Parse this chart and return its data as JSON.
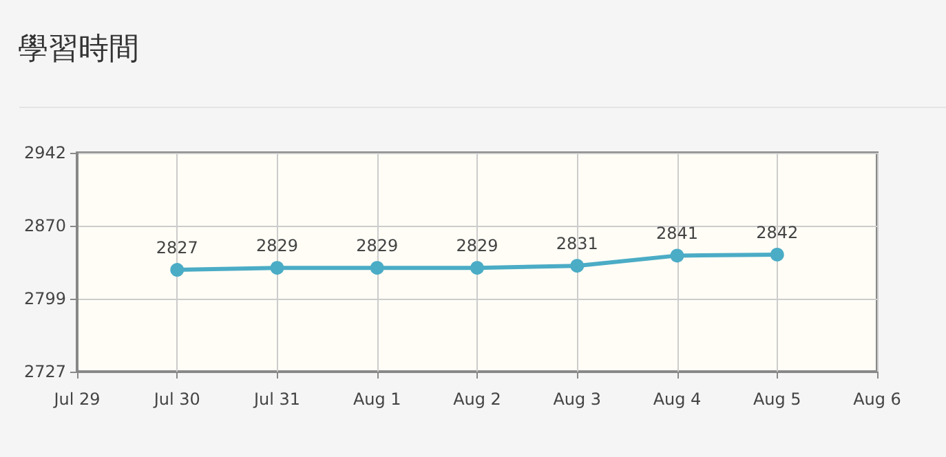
{
  "chart_data": {
    "type": "line",
    "title": "學習時間",
    "x": [
      "--07-30",
      "--07-31",
      "--08-01",
      "--08-02",
      "--08-03",
      "--08-04",
      "--08-05"
    ],
    "series": [
      {
        "color": "#4bacc6",
        "values": [
          2827,
          2829,
          2829,
          2829,
          2831,
          2841,
          2842
        ]
      }
    ],
    "xlim": [
      "--07-29",
      "--08-06"
    ],
    "xticks": [
      {
        "value": "--07-29",
        "label": "Jul 29"
      },
      {
        "value": "--07-30",
        "label": "Jul 30"
      },
      {
        "value": "--07-31",
        "label": "Jul 31"
      },
      {
        "value": "--08-01",
        "label": "Aug 1"
      },
      {
        "value": "--08-02",
        "label": "Aug 2"
      },
      {
        "value": "--08-03",
        "label": "Aug 3"
      },
      {
        "value": "--08-04",
        "label": "Aug 4"
      },
      {
        "value": "--08-05",
        "label": "Aug 5"
      },
      {
        "value": "--08-06",
        "label": "Aug 6"
      }
    ],
    "ylim": [
      2727,
      2942
    ],
    "yticks": [
      2727,
      2799,
      2870,
      2942
    ],
    "grid": true,
    "data_labels": true,
    "marker": "circle",
    "line_style": "solid"
  }
}
